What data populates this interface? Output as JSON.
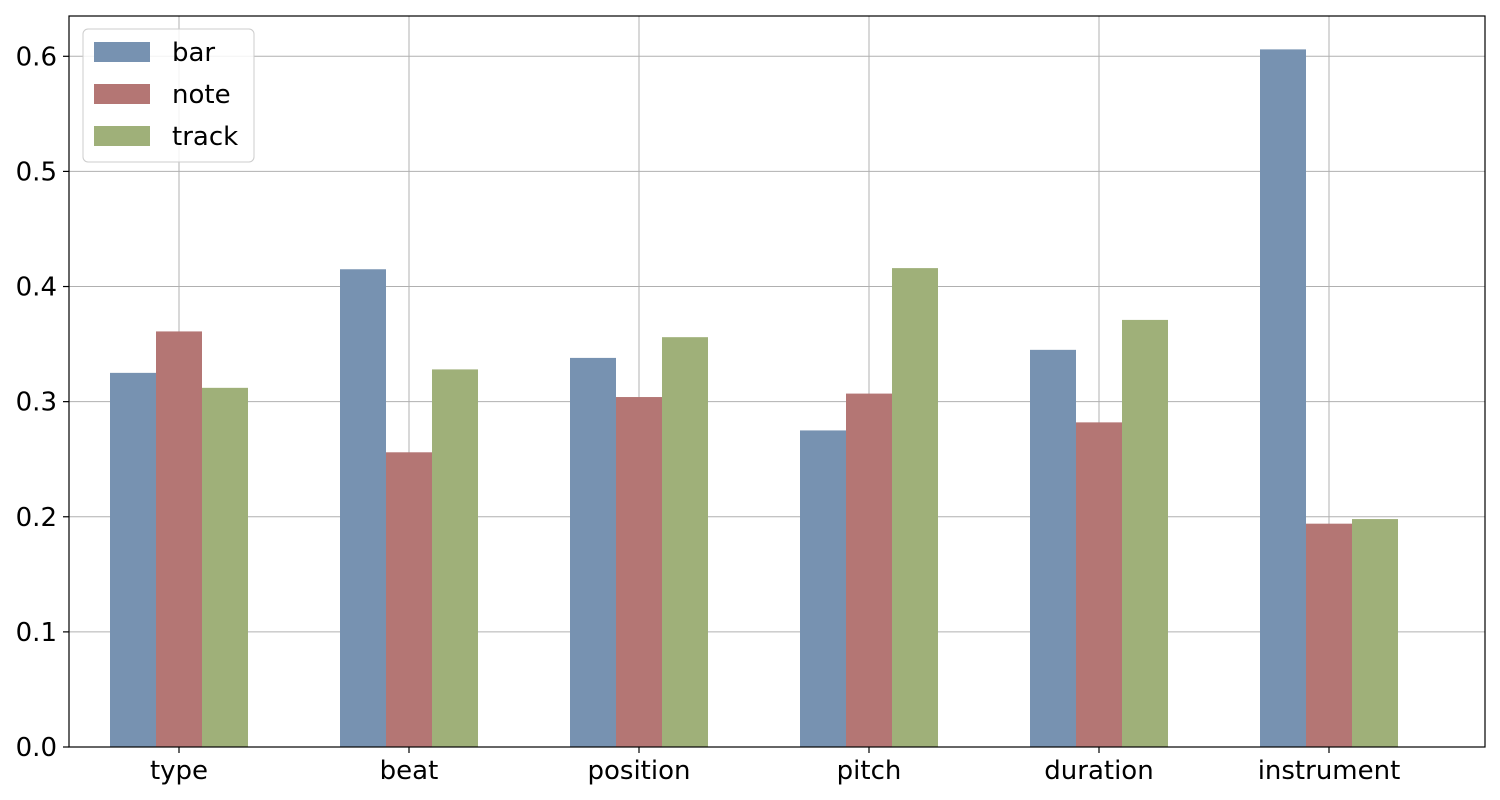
{
  "chart_data": {
    "type": "bar",
    "categories": [
      "type",
      "beat",
      "position",
      "pitch",
      "duration",
      "instrument"
    ],
    "series": [
      {
        "name": "bar",
        "color": "#7792b1",
        "values": [
          0.325,
          0.415,
          0.338,
          0.275,
          0.345,
          0.606
        ]
      },
      {
        "name": "note",
        "color": "#b47674",
        "values": [
          0.361,
          0.256,
          0.304,
          0.307,
          0.282,
          0.194
        ]
      },
      {
        "name": "track",
        "color": "#9fb079",
        "values": [
          0.312,
          0.328,
          0.356,
          0.416,
          0.371,
          0.198
        ]
      }
    ],
    "ylim": [
      0,
      0.635
    ],
    "yticks": [
      "0.0",
      "0.1",
      "0.2",
      "0.3",
      "0.4",
      "0.5",
      "0.6"
    ],
    "grid": true,
    "legend_position": "top-left",
    "title": "",
    "xlabel": "",
    "ylabel": ""
  }
}
